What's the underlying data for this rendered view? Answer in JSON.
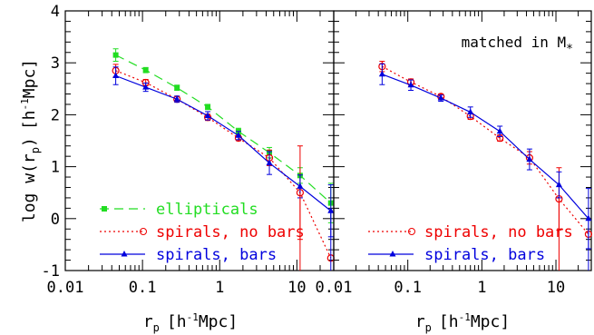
{
  "figure": {
    "y_axis_label": "log w",
    "y_axis_label_paren_open": "(r",
    "y_axis_label_sub": "p",
    "y_axis_label_paren_close": ")",
    "y_axis_label_units": "[h",
    "y_axis_label_units_sup": "-1",
    "y_axis_label_units_end": "Mpc]",
    "x_axis_label_main": "r",
    "x_axis_label_sub": "p",
    "x_axis_label_units": "[h",
    "x_axis_label_units_sup": "-1",
    "x_axis_label_units_end": "Mpc]",
    "y_ticks": [
      "4",
      "3",
      "2",
      "1",
      "0",
      "-1"
    ],
    "y_tick_values": [
      4,
      3,
      2,
      1,
      0,
      -1
    ],
    "x_ticks": [
      "0.01",
      "0.1",
      "1",
      "10"
    ],
    "x_tick_values": [
      0.01,
      0.1,
      1,
      10
    ]
  },
  "colors": {
    "ellipticals": "#22dd22",
    "spirals_no_bars": "#ee0000",
    "spirals_bars": "#0000dd",
    "axes": "#000000"
  },
  "chart_data": [
    {
      "type": "line",
      "xscale": "log",
      "xlim": [
        0.01,
        30
      ],
      "ylim": [
        -1,
        4
      ],
      "annotation": "",
      "legend": [
        "ellipticals",
        "spirals, no bars",
        "spirals, bars"
      ],
      "legend_placement": "bottom-left",
      "series": [
        {
          "name": "ellipticals",
          "color": "#22dd22",
          "style": "dashed",
          "marker": "filled-square",
          "x": [
            0.045,
            0.11,
            0.28,
            0.7,
            1.75,
            4.4,
            11,
            27.5
          ],
          "y": [
            3.15,
            2.86,
            2.52,
            2.15,
            1.68,
            1.27,
            0.83,
            0.3
          ],
          "err": [
            0.12,
            0.05,
            0.05,
            0.05,
            0.06,
            0.1,
            0.15,
            0.38
          ]
        },
        {
          "name": "spirals, no bars",
          "color": "#ee0000",
          "style": "dotted",
          "marker": "open-circle",
          "x": [
            0.045,
            0.11,
            0.28,
            0.7,
            1.75,
            4.4,
            11,
            27.5
          ],
          "y": [
            2.85,
            2.62,
            2.3,
            1.95,
            1.55,
            1.17,
            0.5,
            -0.76
          ],
          "err": [
            0.12,
            0.06,
            0.05,
            0.06,
            0.05,
            0.15,
            0.9,
            0.0
          ]
        },
        {
          "name": "spirals, bars",
          "color": "#0000dd",
          "style": "solid",
          "marker": "filled-triangle",
          "x": [
            0.045,
            0.11,
            0.28,
            0.7,
            1.75,
            4.4,
            11,
            27.5
          ],
          "y": [
            2.75,
            2.53,
            2.3,
            1.98,
            1.6,
            1.07,
            0.62,
            0.15
          ],
          "err": [
            0.17,
            0.08,
            0.06,
            0.08,
            0.08,
            0.22,
            0.22,
            0.5
          ]
        }
      ]
    },
    {
      "type": "line",
      "xscale": "log",
      "xlim": [
        0.01,
        30
      ],
      "ylim": [
        -1,
        4
      ],
      "annotation": "matched in M",
      "annotation_sub": "*",
      "legend": [
        "spirals, no bars",
        "spirals, bars"
      ],
      "legend_placement": "bottom-left",
      "series": [
        {
          "name": "spirals, no bars",
          "color": "#ee0000",
          "style": "dotted",
          "marker": "open-circle",
          "x": [
            0.045,
            0.11,
            0.28,
            0.7,
            1.75,
            4.4,
            11,
            27.5
          ],
          "y": [
            2.93,
            2.63,
            2.35,
            1.97,
            1.55,
            1.17,
            0.38,
            -0.3
          ],
          "err": [
            0.1,
            0.06,
            0.05,
            0.06,
            0.06,
            0.12,
            0.6,
            0.0
          ]
        },
        {
          "name": "spirals, bars",
          "color": "#0000dd",
          "style": "solid",
          "marker": "filled-triangle",
          "x": [
            0.045,
            0.11,
            0.28,
            0.7,
            1.75,
            4.4,
            11,
            27.5
          ],
          "y": [
            2.78,
            2.57,
            2.32,
            2.05,
            1.68,
            1.14,
            0.65,
            0.0
          ],
          "err": [
            0.2,
            0.1,
            0.06,
            0.1,
            0.1,
            0.2,
            0.25,
            0.58
          ]
        }
      ]
    }
  ]
}
